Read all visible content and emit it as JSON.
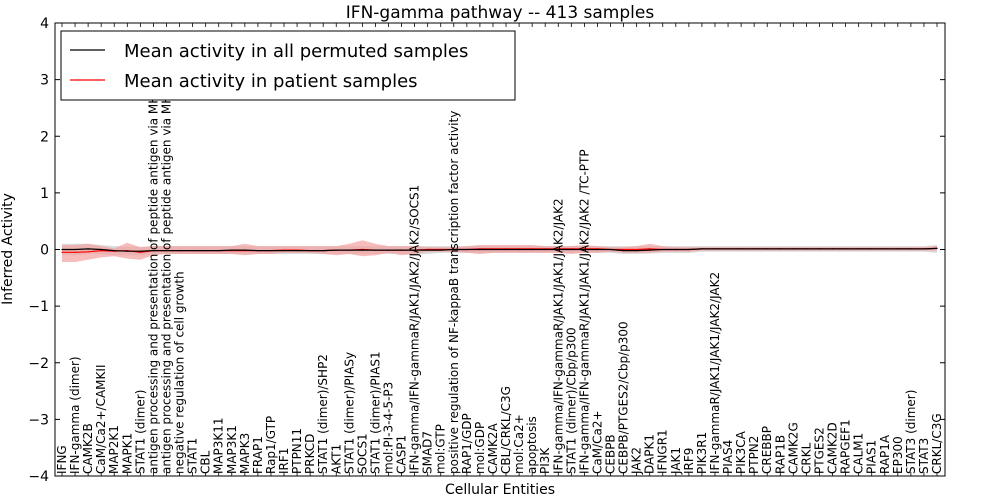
{
  "chart_data": {
    "type": "line",
    "title": "IFN-gamma pathway -- 413 samples",
    "xlabel": "Cellular Entities",
    "ylabel": "Inferred Activity",
    "ylim": [
      -4,
      4
    ],
    "yticks": [
      -4,
      -3,
      -2,
      -1,
      0,
      1,
      2,
      3,
      4
    ],
    "ytick_labels": [
      "−4",
      "−3",
      "−2",
      "−1",
      "0",
      "1",
      "2",
      "3",
      "4"
    ],
    "grid": false,
    "legend_position": "top-left",
    "categories": [
      "IFNG",
      "IFN-gamma (dimer)",
      "CAMK2B",
      "CaM/Ca2+/CAMKII",
      "MAP2K1",
      "MAPK1",
      "STAT1 (dimer)",
      "antigen processing and presentation of peptide antigen via MHC class I",
      "antigen processing and presentation of peptide antigen via MHC class II",
      "negative regulation of cell growth",
      "STAT1",
      "CBL",
      "MAP3K11",
      "MAP3K1",
      "MAPK3",
      "FRAP1",
      "Rap1/GTP",
      "IRF1",
      "PTPN11",
      "PRKCD",
      "STAT1 (dimer)/SHP2",
      "AKT1",
      "STAT1 (dimer)/PIASy",
      "SOCS1",
      "STAT1 (dimer)/PIAS1",
      "mol:PI-3-4-5-P3",
      "CASP1",
      "IFN-gamma/IFN-gammaR/JAK1/JAK2/JAK2/SOCS1",
      "SMAD7",
      "mol:GTP",
      "positive regulation of NF-kappaB transcription factor activity",
      "RAP1/GDP",
      "mol:GDP",
      "CAMK2A",
      "CBL/CRKL/C3G",
      "mol:Ca2+",
      "apoptosis",
      "PI3K",
      "IFN-gamma/IFN-gammaR/JAK1/JAK1/JAK2/JAK2",
      "STAT1 (dimer)/Cbp/p300",
      "IFN-gamma/IFN-gammaR/JAK1/JAK1/JAK2/JAK2  /TC-PTP",
      "CaM/Ca2+",
      "CEBPB",
      "CEBPB/PTGES2/Cbp/p300",
      "JAK2",
      "DAPK1",
      "IFNGR1",
      "JAK1",
      "IRF9",
      "PIK3R1",
      "IFN-gammaR/JAK1/JAK1/JAK2/JAK2",
      "PIAS4",
      "PIK3CA",
      "PTPN2",
      "CREBBP",
      "RAP1B",
      "CAMK2G",
      "CRKL",
      "PTGES2",
      "CAMK2D",
      "RAPGEF1",
      "CALM1",
      "PIAS1",
      "RAP1A",
      "EP300",
      "STAT3 (dimer)",
      "STAT3",
      "CRKL/C3G"
    ],
    "series": [
      {
        "name": "Mean activity in all permuted samples",
        "color": "#000000",
        "band_color": "#d3d3d3",
        "values": [
          0.0,
          0.0,
          0.01,
          0.0,
          -0.02,
          -0.03,
          -0.03,
          -0.02,
          -0.02,
          -0.02,
          -0.02,
          -0.02,
          -0.02,
          -0.01,
          -0.01,
          -0.02,
          -0.02,
          -0.02,
          -0.02,
          -0.02,
          -0.02,
          -0.01,
          -0.01,
          -0.01,
          -0.01,
          -0.01,
          -0.01,
          -0.01,
          -0.01,
          -0.01,
          0.0,
          0.0,
          0.0,
          0.0,
          0.0,
          0.0,
          0.0,
          0.0,
          0.0,
          0.0,
          0.0,
          0.0,
          0.0,
          -0.02,
          -0.02,
          -0.01,
          0.0,
          0.0,
          0.0,
          0.01,
          0.01,
          0.01,
          0.01,
          0.01,
          0.01,
          0.01,
          0.01,
          0.01,
          0.01,
          0.01,
          0.01,
          0.01,
          0.01,
          0.01,
          0.01,
          0.01,
          0.01,
          0.02
        ],
        "lower": [
          -0.1,
          -0.1,
          -0.08,
          -0.08,
          -0.1,
          -0.1,
          -0.1,
          -0.08,
          -0.08,
          -0.08,
          -0.08,
          -0.08,
          -0.08,
          -0.08,
          -0.08,
          -0.08,
          -0.08,
          -0.08,
          -0.08,
          -0.08,
          -0.08,
          -0.08,
          -0.08,
          -0.08,
          -0.08,
          -0.08,
          -0.08,
          -0.08,
          -0.08,
          -0.06,
          -0.06,
          -0.06,
          -0.06,
          -0.06,
          -0.06,
          -0.06,
          -0.06,
          -0.06,
          -0.06,
          -0.06,
          -0.06,
          -0.06,
          -0.06,
          -0.08,
          -0.08,
          -0.07,
          -0.06,
          -0.06,
          -0.06,
          -0.04,
          -0.04,
          -0.04,
          -0.04,
          -0.04,
          -0.04,
          -0.04,
          -0.04,
          -0.04,
          -0.04,
          -0.04,
          -0.04,
          -0.04,
          -0.04,
          -0.04,
          -0.04,
          -0.04,
          -0.04,
          -0.06
        ],
        "upper": [
          0.1,
          0.1,
          0.1,
          0.08,
          0.06,
          0.05,
          0.05,
          0.06,
          0.06,
          0.06,
          0.06,
          0.06,
          0.06,
          0.06,
          0.06,
          0.06,
          0.06,
          0.06,
          0.06,
          0.06,
          0.06,
          0.06,
          0.06,
          0.06,
          0.06,
          0.06,
          0.06,
          0.06,
          0.06,
          0.06,
          0.06,
          0.06,
          0.06,
          0.06,
          0.06,
          0.06,
          0.06,
          0.06,
          0.06,
          0.06,
          0.06,
          0.06,
          0.06,
          0.06,
          0.06,
          0.06,
          0.06,
          0.06,
          0.06,
          0.06,
          0.06,
          0.06,
          0.06,
          0.06,
          0.06,
          0.06,
          0.06,
          0.06,
          0.06,
          0.06,
          0.06,
          0.06,
          0.06,
          0.06,
          0.06,
          0.06,
          0.06,
          0.08
        ]
      },
      {
        "name": "Mean activity in patient samples",
        "color": "#ff0000",
        "band_color": "#f4a0a0",
        "values": [
          -0.05,
          -0.05,
          -0.04,
          -0.02,
          -0.03,
          -0.02,
          -0.05,
          -0.02,
          -0.02,
          -0.02,
          -0.02,
          -0.02,
          -0.02,
          -0.02,
          -0.02,
          -0.02,
          -0.02,
          -0.01,
          -0.01,
          -0.02,
          -0.02,
          -0.01,
          -0.01,
          0.0,
          -0.01,
          -0.01,
          -0.01,
          -0.01,
          0.0,
          0.0,
          0.0,
          0.0,
          0.01,
          0.01,
          0.01,
          0.01,
          0.01,
          0.01,
          0.01,
          0.01,
          0.01,
          0.01,
          0.0,
          0.0,
          0.0,
          0.01,
          0.0,
          0.0,
          0.0,
          0.01,
          0.01,
          0.01,
          0.01,
          0.01,
          0.01,
          0.01,
          0.01,
          0.01,
          0.01,
          0.01,
          0.01,
          0.01,
          0.01,
          0.01,
          0.01,
          0.01,
          0.01,
          0.02
        ],
        "lower": [
          -0.22,
          -0.22,
          -0.18,
          -0.14,
          -0.12,
          -0.16,
          -0.18,
          -0.1,
          -0.08,
          -0.08,
          -0.08,
          -0.08,
          -0.08,
          -0.08,
          -0.1,
          -0.08,
          -0.08,
          -0.06,
          -0.06,
          -0.06,
          -0.08,
          -0.1,
          -0.08,
          -0.12,
          -0.1,
          -0.06,
          -0.1,
          -0.08,
          -0.04,
          -0.04,
          -0.04,
          -0.06,
          -0.08,
          -0.06,
          -0.06,
          -0.06,
          -0.06,
          -0.06,
          -0.06,
          -0.08,
          -0.06,
          -0.06,
          -0.04,
          -0.06,
          -0.06,
          -0.06,
          -0.04,
          -0.04,
          -0.04,
          -0.02,
          -0.02,
          -0.02,
          -0.02,
          -0.02,
          -0.02,
          -0.02,
          -0.02,
          -0.02,
          -0.02,
          -0.02,
          -0.02,
          -0.02,
          -0.02,
          -0.02,
          -0.02,
          -0.02,
          -0.02,
          -0.02
        ],
        "upper": [
          0.08,
          0.08,
          0.1,
          0.06,
          0.02,
          0.12,
          0.04,
          0.06,
          0.06,
          0.06,
          0.06,
          0.06,
          0.06,
          0.06,
          0.1,
          0.06,
          0.06,
          0.06,
          0.06,
          0.06,
          0.06,
          0.06,
          0.1,
          0.16,
          0.1,
          0.06,
          0.06,
          0.06,
          0.04,
          0.04,
          0.04,
          0.06,
          0.08,
          0.08,
          0.08,
          0.08,
          0.08,
          0.06,
          0.06,
          0.06,
          0.08,
          0.06,
          0.04,
          0.04,
          0.06,
          0.1,
          0.06,
          0.04,
          0.04,
          0.04,
          0.04,
          0.04,
          0.04,
          0.04,
          0.04,
          0.04,
          0.04,
          0.04,
          0.04,
          0.04,
          0.04,
          0.04,
          0.04,
          0.04,
          0.04,
          0.04,
          0.04,
          0.06
        ]
      }
    ]
  }
}
